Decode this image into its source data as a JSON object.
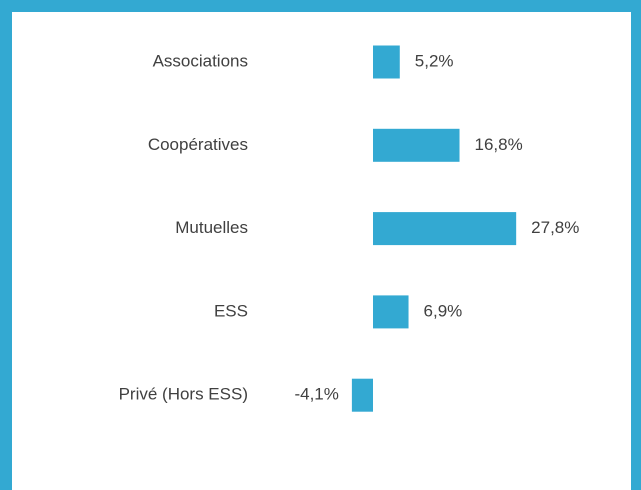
{
  "chart_data": {
    "type": "bar",
    "orientation": "horizontal",
    "categories": [
      "Associations",
      "Coopératives",
      "Mutuelles",
      "ESS",
      "Privé (Hors ESS)"
    ],
    "values": [
      5.2,
      16.8,
      27.8,
      6.9,
      -4.1
    ],
    "value_labels": [
      "5,2%",
      "16,8%",
      "27,8%",
      "6,9%",
      "-4,1%"
    ],
    "color": "#33a9d2"
  }
}
